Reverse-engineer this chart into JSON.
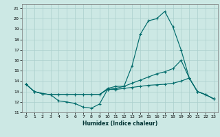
{
  "xlabel": "Humidex (Indice chaleur)",
  "bg_color": "#cce8e4",
  "grid_color": "#aacfcc",
  "line_color": "#006b6b",
  "xlim": [
    -0.5,
    23.5
  ],
  "ylim": [
    11,
    21.4
  ],
  "xticks": [
    0,
    1,
    2,
    3,
    4,
    5,
    6,
    7,
    8,
    9,
    10,
    11,
    12,
    13,
    14,
    15,
    16,
    17,
    18,
    19,
    20,
    21,
    22,
    23
  ],
  "yticks": [
    11,
    12,
    13,
    14,
    15,
    16,
    17,
    18,
    19,
    20,
    21
  ],
  "line1_x": [
    0,
    1,
    2,
    3,
    4,
    5,
    6,
    7,
    8,
    9,
    10,
    11,
    12,
    13,
    14,
    15,
    16,
    17,
    18,
    19,
    20,
    21,
    22,
    23
  ],
  "line1_y": [
    13.7,
    13.0,
    12.8,
    12.7,
    12.1,
    12.0,
    11.85,
    11.5,
    11.4,
    11.8,
    13.2,
    13.2,
    13.3,
    13.4,
    13.5,
    13.6,
    13.65,
    13.7,
    13.8,
    14.0,
    14.3,
    13.0,
    12.7,
    12.3
  ],
  "line2_x": [
    0,
    1,
    2,
    3,
    4,
    5,
    6,
    7,
    8,
    9,
    10,
    11,
    12,
    13,
    14,
    15,
    16,
    17,
    18,
    19,
    20,
    21,
    22,
    23
  ],
  "line2_y": [
    13.7,
    13.0,
    12.8,
    12.7,
    12.7,
    12.7,
    12.7,
    12.7,
    12.7,
    12.7,
    13.2,
    13.3,
    13.5,
    13.8,
    14.1,
    14.4,
    14.7,
    14.9,
    15.2,
    16.0,
    14.3,
    13.0,
    12.7,
    12.3
  ],
  "line3_x": [
    0,
    1,
    2,
    3,
    4,
    5,
    6,
    7,
    8,
    9,
    10,
    11,
    12,
    13,
    14,
    15,
    16,
    17,
    18,
    19,
    20,
    21,
    22,
    23
  ],
  "line3_y": [
    13.7,
    13.0,
    12.8,
    12.7,
    12.7,
    12.7,
    12.7,
    12.7,
    12.7,
    12.7,
    13.3,
    13.5,
    13.5,
    15.5,
    18.5,
    19.8,
    20.0,
    20.7,
    19.2,
    17.0,
    14.3,
    13.0,
    12.7,
    12.3
  ]
}
